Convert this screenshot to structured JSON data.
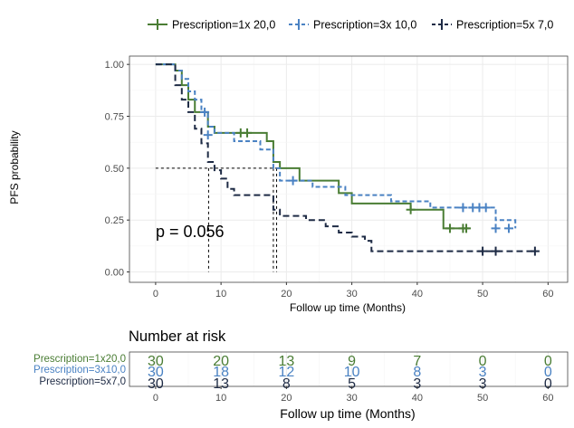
{
  "chart_data": [
    {
      "type": "line",
      "subtype": "kaplan-meier",
      "xlabel": "Follow up time (Months)",
      "ylabel": "PFS probability",
      "xlim": [
        -4,
        63
      ],
      "ylim": [
        -0.05,
        1.04
      ],
      "xticks": [
        0,
        10,
        20,
        30,
        40,
        50,
        60
      ],
      "yticks": [
        0.0,
        0.25,
        0.5,
        0.75,
        1.0
      ],
      "ytick_labels": [
        "0.00",
        "0.25",
        "0.50",
        "0.75",
        "1.00"
      ],
      "grid": true,
      "legend_position": "top",
      "annotation": "p = 0.056",
      "median_lines": {
        "y": 0.5,
        "x": [
          8.1,
          18.0,
          18.5
        ]
      },
      "series": [
        {
          "name": "Prescription=1x 20,0",
          "color": "#4a7d34",
          "dash": "solid",
          "steps": [
            [
              0,
              1.0
            ],
            [
              3,
              0.97
            ],
            [
              4,
              0.9
            ],
            [
              5,
              0.83
            ],
            [
              6,
              0.77
            ],
            [
              8,
              0.7
            ],
            [
              9,
              0.67
            ],
            [
              13,
              0.67
            ],
            [
              17,
              0.63
            ],
            [
              18,
              0.53
            ],
            [
              19,
              0.5
            ],
            [
              22,
              0.44
            ],
            [
              28,
              0.38
            ],
            [
              30,
              0.33
            ],
            [
              39,
              0.3
            ],
            [
              44,
              0.21
            ],
            [
              48,
              0.21
            ]
          ],
          "censor": [
            [
              13,
              0.67
            ],
            [
              14,
              0.67
            ],
            [
              39,
              0.3
            ],
            [
              45,
              0.21
            ],
            [
              47,
              0.21
            ],
            [
              47.5,
              0.21
            ]
          ]
        },
        {
          "name": "Prescription=3x 10,0",
          "color": "#4a82c3",
          "dash": "dashed",
          "steps": [
            [
              0,
              1.0
            ],
            [
              2,
              1.0
            ],
            [
              3,
              0.97
            ],
            [
              4,
              0.93
            ],
            [
              5,
              0.87
            ],
            [
              6,
              0.83
            ],
            [
              7,
              0.77
            ],
            [
              8,
              0.7
            ],
            [
              9,
              0.67
            ],
            [
              12,
              0.63
            ],
            [
              16,
              0.59
            ],
            [
              18,
              0.5
            ],
            [
              19,
              0.44
            ],
            [
              24,
              0.41
            ],
            [
              29,
              0.37
            ],
            [
              36,
              0.34
            ],
            [
              42,
              0.31
            ],
            [
              51,
              0.31
            ],
            [
              52,
              0.25
            ],
            [
              55,
              0.21
            ]
          ],
          "censor": [
            [
              7.5,
              0.77
            ],
            [
              8,
              0.66
            ],
            [
              21,
              0.44
            ],
            [
              47,
              0.31
            ],
            [
              48.5,
              0.31
            ],
            [
              49.5,
              0.31
            ],
            [
              50.5,
              0.31
            ],
            [
              52,
              0.21
            ],
            [
              54,
              0.21
            ]
          ]
        },
        {
          "name": "Prescription=5x 7,0",
          "color": "#1e2b45",
          "dash": "dashed",
          "steps": [
            [
              0,
              1.0
            ],
            [
              3,
              0.9
            ],
            [
              4,
              0.83
            ],
            [
              5,
              0.77
            ],
            [
              6,
              0.69
            ],
            [
              7,
              0.62
            ],
            [
              8,
              0.53
            ],
            [
              9,
              0.49
            ],
            [
              10,
              0.45
            ],
            [
              11,
              0.4
            ],
            [
              12,
              0.37
            ],
            [
              18,
              0.3
            ],
            [
              19,
              0.27
            ],
            [
              23,
              0.25
            ],
            [
              26,
              0.22
            ],
            [
              28,
              0.19
            ],
            [
              30,
              0.17
            ],
            [
              32,
              0.15
            ],
            [
              33,
              0.1
            ],
            [
              58,
              0.1
            ]
          ],
          "censor": [
            [
              50,
              0.1
            ],
            [
              52,
              0.1
            ],
            [
              58,
              0.1
            ]
          ]
        }
      ]
    },
    {
      "type": "table",
      "title": "Number at risk",
      "xlabel": "Follow up time (Months)",
      "xticks": [
        0,
        10,
        20,
        30,
        40,
        50,
        60
      ],
      "rows": [
        {
          "label": "Prescription=1x20,0",
          "color": "#4a7d34",
          "values": [
            30,
            20,
            13,
            9,
            7,
            0,
            0
          ]
        },
        {
          "label": "Prescription=3x10,0",
          "color": "#4a82c3",
          "values": [
            30,
            18,
            12,
            10,
            8,
            3,
            0
          ]
        },
        {
          "label": "Prescription=5x7,0",
          "color": "#1e2b45",
          "values": [
            30,
            13,
            8,
            5,
            3,
            3,
            0
          ]
        }
      ]
    }
  ]
}
